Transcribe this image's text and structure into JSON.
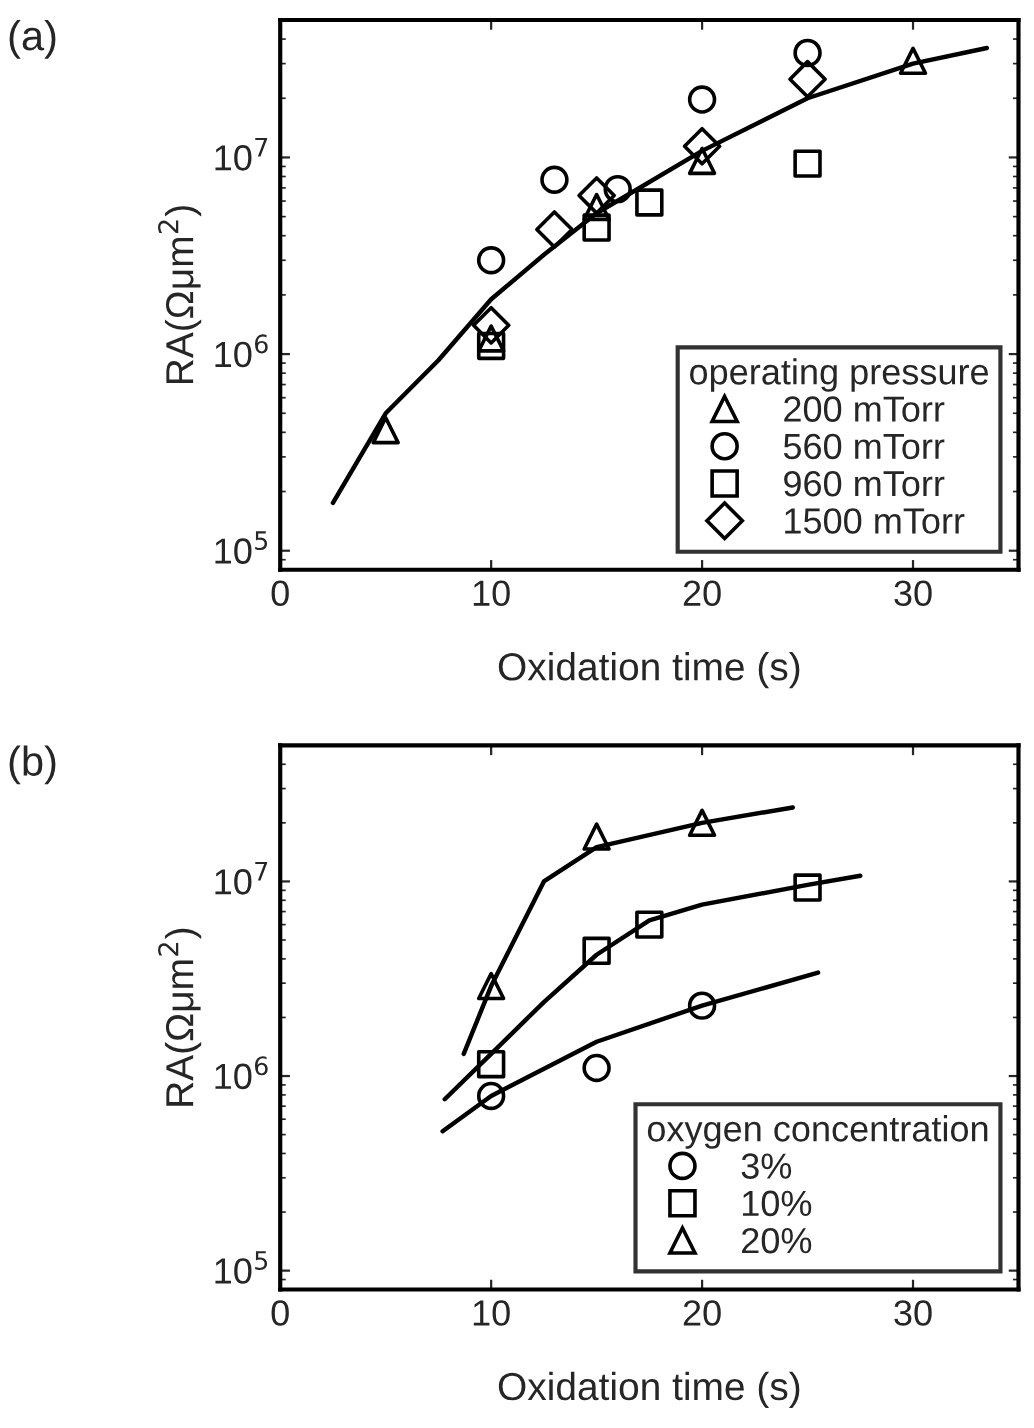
{
  "chart_data": [
    {
      "type": "scatter",
      "title": "(a)",
      "xlabel": "Oxidation time (s)",
      "ylabel": "RA(Ωμm$^{2}$)",
      "legend_title": "operating pressure",
      "legend": "bottom right",
      "log": "y",
      "xlim": [
        0,
        35
      ],
      "xticks": [
        0,
        10,
        20,
        30
      ],
      "ylim": [
        80000,
        50000000
      ],
      "yticks": [
        {
          "value": 100000,
          "label": "10$^{5}$"
        },
        {
          "value": 1000000,
          "label": "10$^{6}$"
        },
        {
          "value": 10000000,
          "label": "10$^{7}$"
        }
      ],
      "series": [
        {
          "name": "200 mTorr",
          "color": "#000000",
          "marker": "triangle",
          "x": [
            5,
            10,
            15,
            20,
            30
          ],
          "values": [
            410000,
            1200000,
            5600000,
            9600000,
            31000000
          ]
        },
        {
          "name": "560 mTorr",
          "color": "#000000",
          "marker": "circle",
          "x": [
            10,
            13,
            16,
            20,
            25
          ],
          "values": [
            3000000,
            7700000,
            6900000,
            19700000,
            34000000
          ]
        },
        {
          "name": "960 mTorr",
          "color": "#000000",
          "marker": "square",
          "x": [
            10,
            15,
            17.5,
            25
          ],
          "values": [
            1100000,
            4400000,
            5900000,
            9300000
          ]
        },
        {
          "name": "1500 mTorr",
          "color": "#000000",
          "marker": "diamond",
          "x": [
            10,
            13,
            15,
            20,
            25
          ],
          "values": [
            1400000,
            4300000,
            6400000,
            11400000,
            25000000
          ]
        },
        {
          "type": "line",
          "color": "#000000",
          "line_style": "solid",
          "x": [
            2.5,
            5,
            7.5,
            10,
            12.5,
            15,
            20,
            25,
            30,
            33.5
          ],
          "values": [
            175000,
            500000,
            930000,
            1900000,
            3200000,
            5200000,
            10800000,
            20000000,
            30000000,
            36000000
          ]
        }
      ]
    },
    {
      "type": "scatter",
      "title": "(b)",
      "xlabel": "Oxidation time (s)",
      "ylabel": "RA(Ωμm$^{2}$)",
      "legend_title": "oxygen concentration",
      "legend": "bottom right",
      "log": "y",
      "xlim": [
        0,
        35
      ],
      "xticks": [
        0,
        10,
        20,
        30
      ],
      "ylim": [
        80000,
        50000000
      ],
      "yticks": [
        {
          "value": 100000,
          "label": "10$^{5}$"
        },
        {
          "value": 1000000,
          "label": "10$^{6}$"
        },
        {
          "value": 10000000,
          "label": "10$^{7}$"
        }
      ],
      "series": [
        {
          "name": "3%",
          "color": "#000000",
          "marker": "circle",
          "x": [
            10,
            15,
            20
          ],
          "values": [
            790000,
            1100000,
            2300000
          ]
        },
        {
          "name": "10%",
          "color": "#000000",
          "marker": "square",
          "x": [
            10,
            15,
            17.5,
            25
          ],
          "values": [
            1150000,
            4400000,
            6000000,
            9300000
          ]
        },
        {
          "name": "20%",
          "color": "#000000",
          "marker": "triangle",
          "x": [
            10,
            15,
            20
          ],
          "values": [
            2900000,
            17000000,
            20000000
          ]
        },
        {
          "type": "line",
          "color": "#000000",
          "line_style": "solid",
          "x": [
            7.7,
            10,
            15,
            20,
            25.5
          ],
          "values": [
            520000,
            790000,
            1500000,
            2300000,
            3400000
          ]
        },
        {
          "type": "line",
          "color": "#000000",
          "line_style": "solid",
          "x": [
            7.8,
            10,
            12.5,
            15,
            17.5,
            20,
            25,
            27.5
          ],
          "values": [
            760000,
            1300000,
            2400000,
            4200000,
            6300000,
            7600000,
            9600000,
            10700000
          ]
        },
        {
          "type": "line",
          "color": "#000000",
          "line_style": "solid",
          "x": [
            8.7,
            10,
            12.5,
            15,
            20,
            24.3
          ],
          "values": [
            1300000,
            2900000,
            10000000,
            15000000,
            20000000,
            24000000
          ]
        }
      ]
    }
  ]
}
